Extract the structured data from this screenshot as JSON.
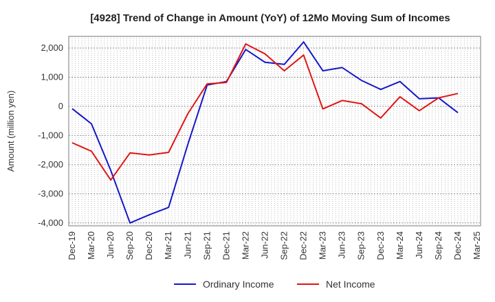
{
  "chart_data": {
    "type": "line",
    "title": "[4928]  Trend of Change in Amount (YoY) of 12Mo Moving Sum of Incomes",
    "xlabel": "",
    "ylabel": "Amount (million yen)",
    "ylim": [
      -4100,
      2400
    ],
    "yticks": [
      2000,
      1000,
      0,
      -1000,
      -2000,
      -3000,
      -4000
    ],
    "ytick_labels": [
      "2,000",
      "1,000",
      "0",
      "-1,000",
      "-2,000",
      "-3,000",
      "-4,000"
    ],
    "categories": [
      "Dec-19",
      "Mar-20",
      "Jun-20",
      "Sep-20",
      "Dec-20",
      "Mar-21",
      "Jun-21",
      "Sep-21",
      "Dec-21",
      "Mar-22",
      "Jun-22",
      "Sep-22",
      "Dec-22",
      "Mar-23",
      "Jun-23",
      "Sep-23",
      "Dec-23",
      "Mar-24",
      "Jun-24",
      "Sep-24",
      "Dec-24",
      "Mar-25"
    ],
    "grid": true,
    "legend_position": "bottom",
    "series": [
      {
        "name": "Ordinary Income",
        "color": "#1515c8",
        "values": [
          -80,
          -600,
          -2200,
          -4000,
          -3720,
          -3470,
          -1300,
          730,
          850,
          1950,
          1510,
          1440,
          2210,
          1220,
          1330,
          890,
          580,
          850,
          260,
          290,
          -220,
          null
        ]
      },
      {
        "name": "Net Income",
        "color": "#e01414",
        "values": [
          -1250,
          -1540,
          -2530,
          -1600,
          -1670,
          -1580,
          -250,
          770,
          820,
          2140,
          1800,
          1220,
          1760,
          -90,
          200,
          90,
          -400,
          330,
          -150,
          290,
          440,
          null
        ]
      }
    ]
  }
}
